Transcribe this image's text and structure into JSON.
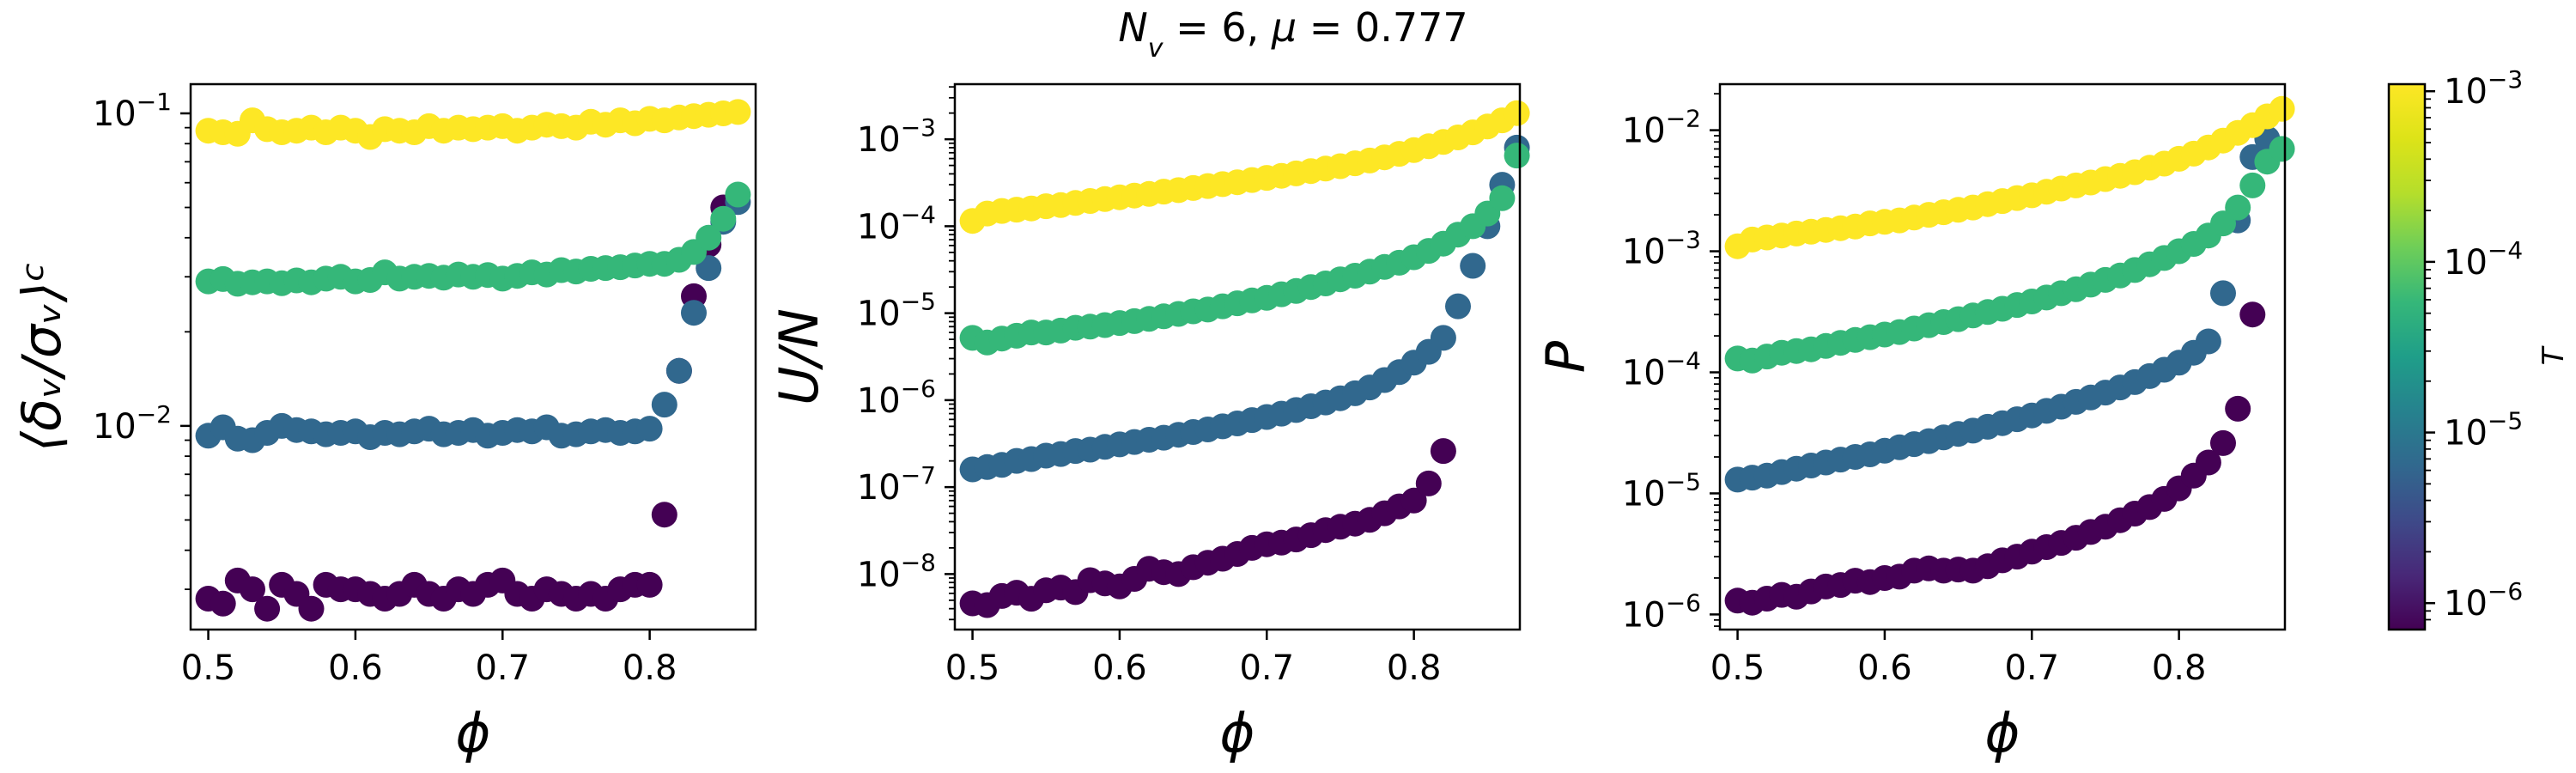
{
  "figure": {
    "suptitle": "N_v = 6, μ = 0.777",
    "suptitle_parts": {
      "sym": "N",
      "sub": "v",
      "rest": " = 6, ",
      "mu": "μ",
      "value": " = 0.777"
    }
  },
  "colors": {
    "T_1e-06": "#440154",
    "T_1e-05": "#31688e",
    "T_1e-04": "#35b779",
    "T_1e-03": "#fde725"
  },
  "colorbar": {
    "label": "T",
    "scale": "log",
    "range": [
      7e-07,
      0.0011
    ],
    "ticks": [
      {
        "base": "10",
        "exp": "−3",
        "value": 0.001
      },
      {
        "base": "10",
        "exp": "−4",
        "value": 0.0001
      },
      {
        "base": "10",
        "exp": "−5",
        "value": 1e-05
      },
      {
        "base": "10",
        "exp": "−6",
        "value": 1e-06
      }
    ]
  },
  "chart_data": [
    {
      "type": "scatter",
      "xlabel": "ϕ",
      "ylabel": "⟨δ_v/σ_v⟩_c",
      "ylabel_display": "⟨δᵥ/σᵥ⟩ᶜ",
      "yscale": "log",
      "xlim": [
        0.488,
        0.872
      ],
      "ylim": [
        0.00223,
        0.124
      ],
      "xticks": [
        "0.5",
        "0.6",
        "0.7",
        "0.8"
      ],
      "yticks": [
        {
          "base": "10",
          "exp": "−1",
          "value": 0.1
        },
        {
          "base": "10",
          "exp": "−2",
          "value": 0.01
        }
      ],
      "series": [
        {
          "color_key": "T_1e-06",
          "x_start": 0.5,
          "x_step": 0.01,
          "values": [
            0.0028,
            0.0027,
            0.0032,
            0.003,
            0.0026,
            0.0031,
            0.0029,
            0.0026,
            0.0031,
            0.003,
            0.003,
            0.0029,
            0.0028,
            0.0029,
            0.0031,
            0.0029,
            0.0028,
            0.003,
            0.0029,
            0.0031,
            0.0032,
            0.0029,
            0.0028,
            0.003,
            0.0029,
            0.0028,
            0.0029,
            0.0028,
            0.003,
            0.0031,
            0.0031,
            0.0052,
            0.015,
            0.026,
            0.038,
            0.05
          ]
        },
        {
          "color_key": "T_1e-05",
          "x_start": 0.5,
          "x_step": 0.01,
          "values": [
            0.0093,
            0.0099,
            0.0091,
            0.009,
            0.0095,
            0.01,
            0.0097,
            0.0096,
            0.0094,
            0.0095,
            0.0096,
            0.0092,
            0.0095,
            0.0094,
            0.0096,
            0.0098,
            0.0094,
            0.0095,
            0.0097,
            0.0093,
            0.0095,
            0.0097,
            0.0096,
            0.0099,
            0.0093,
            0.0094,
            0.0096,
            0.0097,
            0.0095,
            0.0096,
            0.0098,
            0.0117,
            0.015,
            0.023,
            0.032,
            0.045,
            0.052
          ]
        },
        {
          "color_key": "T_1e-04",
          "x_start": 0.5,
          "x_step": 0.01,
          "values": [
            0.029,
            0.0295,
            0.0285,
            0.0288,
            0.029,
            0.0286,
            0.0292,
            0.0288,
            0.0296,
            0.03,
            0.029,
            0.0293,
            0.031,
            0.0296,
            0.03,
            0.0302,
            0.0298,
            0.0305,
            0.03,
            0.0304,
            0.0296,
            0.0302,
            0.031,
            0.0305,
            0.0315,
            0.0312,
            0.0318,
            0.032,
            0.0322,
            0.0326,
            0.033,
            0.033,
            0.034,
            0.036,
            0.04,
            0.046,
            0.055
          ]
        },
        {
          "color_key": "T_1e-03",
          "x_start": 0.5,
          "x_step": 0.01,
          "values": [
            0.088,
            0.087,
            0.086,
            0.095,
            0.089,
            0.087,
            0.088,
            0.09,
            0.087,
            0.09,
            0.088,
            0.084,
            0.089,
            0.088,
            0.087,
            0.091,
            0.088,
            0.09,
            0.089,
            0.09,
            0.091,
            0.088,
            0.09,
            0.092,
            0.091,
            0.09,
            0.094,
            0.092,
            0.095,
            0.093,
            0.096,
            0.095,
            0.097,
            0.098,
            0.099,
            0.1,
            0.101
          ]
        }
      ]
    },
    {
      "type": "scatter",
      "xlabel": "ϕ",
      "ylabel": "U/N",
      "ylabel_display": "U/N",
      "yscale": "log",
      "xlim": [
        0.488,
        0.872
      ],
      "ylim": [
        2.3e-09,
        0.0043
      ],
      "xticks": [
        "0.5",
        "0.6",
        "0.7",
        "0.8"
      ],
      "yticks": [
        {
          "base": "10",
          "exp": "−3",
          "value": 0.001
        },
        {
          "base": "10",
          "exp": "−4",
          "value": 0.0001
        },
        {
          "base": "10",
          "exp": "−5",
          "value": 1e-05
        },
        {
          "base": "10",
          "exp": "−6",
          "value": 1e-06
        },
        {
          "base": "10",
          "exp": "−7",
          "value": 1e-07
        },
        {
          "base": "10",
          "exp": "−8",
          "value": 1e-08
        }
      ],
      "series": [
        {
          "color_key": "T_1e-06",
          "x_start": 0.5,
          "x_step": 0.01,
          "values": [
            4.6e-09,
            4.4e-09,
            5.6e-09,
            6.1e-09,
            5.2e-09,
            6.5e-09,
            7e-09,
            6.2e-09,
            8.5e-09,
            7.8e-09,
            7.2e-09,
            8.8e-09,
            1.15e-08,
            1.05e-08,
            1e-08,
            1.2e-08,
            1.35e-08,
            1.5e-08,
            1.7e-08,
            2e-08,
            2.2e-08,
            2.3e-08,
            2.5e-08,
            2.8e-08,
            3.2e-08,
            3.5e-08,
            3.8e-08,
            4.2e-08,
            5e-08,
            6e-08,
            7e-08,
            1.1e-07,
            2.6e-07
          ]
        },
        {
          "color_key": "T_1e-05",
          "x_start": 0.5,
          "x_step": 0.01,
          "values": [
            1.6e-07,
            1.7e-07,
            1.8e-07,
            2e-07,
            2.1e-07,
            2.3e-07,
            2.4e-07,
            2.6e-07,
            2.7e-07,
            2.9e-07,
            3.1e-07,
            3.3e-07,
            3.5e-07,
            3.7e-07,
            4e-07,
            4.3e-07,
            4.6e-07,
            5e-07,
            5.4e-07,
            5.9e-07,
            6.4e-07,
            7e-07,
            7.7e-07,
            8.5e-07,
            9.4e-07,
            1.05e-06,
            1.2e-06,
            1.4e-06,
            1.7e-06,
            2.1e-06,
            2.7e-06,
            3.6e-06,
            5.2e-06,
            1.2e-05,
            3.5e-05,
            0.0001,
            0.0003,
            0.0008
          ]
        },
        {
          "color_key": "T_1e-04",
          "x_start": 0.5,
          "x_step": 0.01,
          "values": [
            5.2e-06,
            4.6e-06,
            5.1e-06,
            5.5e-06,
            6e-06,
            6e-06,
            6.3e-06,
            6.8e-06,
            7e-06,
            7.3e-06,
            7.7e-06,
            8.1e-06,
            8.6e-06,
            9.2e-06,
            9.8e-06,
            1.05e-05,
            1.1e-05,
            1.2e-05,
            1.3e-05,
            1.4e-05,
            1.5e-05,
            1.65e-05,
            1.8e-05,
            2e-05,
            2.2e-05,
            2.45e-05,
            2.7e-05,
            3e-05,
            3.4e-05,
            3.8e-05,
            4.4e-05,
            5.2e-05,
            6.3e-05,
            8e-05,
            0.0001,
            0.00014,
            0.00021,
            0.00065
          ]
        },
        {
          "color_key": "T_1e-03",
          "x_start": 0.5,
          "x_step": 0.01,
          "values": [
            0.000115,
            0.00014,
            0.00015,
            0.000155,
            0.00016,
            0.00017,
            0.000175,
            0.000185,
            0.000195,
            0.000205,
            0.000215,
            0.000225,
            0.000235,
            0.00025,
            0.00026,
            0.000275,
            0.00029,
            0.000305,
            0.00032,
            0.00034,
            0.00036,
            0.00038,
            0.000405,
            0.00043,
            0.00046,
            0.00049,
            0.00053,
            0.00057,
            0.00062,
            0.00068,
            0.00075,
            0.00083,
            0.00093,
            0.00105,
            0.0012,
            0.0014,
            0.00165,
            0.002
          ]
        }
      ]
    },
    {
      "type": "scatter",
      "xlabel": "ϕ",
      "ylabel": "P",
      "ylabel_display": "P",
      "yscale": "log",
      "xlim": [
        0.488,
        0.872
      ],
      "ylim": [
        7.5e-07,
        0.024
      ],
      "xticks": [
        "0.5",
        "0.6",
        "0.7",
        "0.8"
      ],
      "yticks": [
        {
          "base": "10",
          "exp": "−2",
          "value": 0.01
        },
        {
          "base": "10",
          "exp": "−3",
          "value": 0.001
        },
        {
          "base": "10",
          "exp": "−4",
          "value": 0.0001
        },
        {
          "base": "10",
          "exp": "−5",
          "value": 1e-05
        },
        {
          "base": "10",
          "exp": "−6",
          "value": 1e-06
        }
      ],
      "series": [
        {
          "color_key": "T_1e-06",
          "x_start": 0.5,
          "x_step": 0.01,
          "values": [
            1.3e-06,
            1.25e-06,
            1.35e-06,
            1.45e-06,
            1.4e-06,
            1.55e-06,
            1.7e-06,
            1.75e-06,
            1.9e-06,
            1.85e-06,
            2e-06,
            2.05e-06,
            2.3e-06,
            2.4e-06,
            2.3e-06,
            2.35e-06,
            2.3e-06,
            2.5e-06,
            2.8e-06,
            3e-06,
            3.3e-06,
            3.6e-06,
            3.9e-06,
            4.3e-06,
            4.8e-06,
            5.3e-06,
            6e-06,
            6.8e-06,
            7.7e-06,
            9e-06,
            1.1e-05,
            1.4e-05,
            1.8e-05,
            2.6e-05,
            5e-05,
            0.0003
          ]
        },
        {
          "color_key": "T_1e-05",
          "x_start": 0.5,
          "x_step": 0.01,
          "values": [
            1.3e-05,
            1.35e-05,
            1.4e-05,
            1.5e-05,
            1.6e-05,
            1.7e-05,
            1.8e-05,
            1.9e-05,
            2e-05,
            2.1e-05,
            2.25e-05,
            2.4e-05,
            2.55e-05,
            2.7e-05,
            2.9e-05,
            3.1e-05,
            3.3e-05,
            3.55e-05,
            3.8e-05,
            4.1e-05,
            4.4e-05,
            4.8e-05,
            5.2e-05,
            5.7e-05,
            6.2e-05,
            6.8e-05,
            7.5e-05,
            8.3e-05,
            9.3e-05,
            0.000105,
            0.00012,
            0.000145,
            0.00018,
            0.00045,
            0.0018,
            0.006,
            0.0085
          ]
        },
        {
          "color_key": "T_1e-04",
          "x_start": 0.5,
          "x_step": 0.01,
          "values": [
            0.00013,
            0.000125,
            0.000135,
            0.000145,
            0.00015,
            0.000155,
            0.000165,
            0.000175,
            0.000185,
            0.000195,
            0.000205,
            0.000215,
            0.00023,
            0.000245,
            0.00026,
            0.000275,
            0.000295,
            0.000315,
            0.000335,
            0.00036,
            0.000385,
            0.000415,
            0.00045,
            0.000485,
            0.00053,
            0.00058,
            0.00063,
            0.0007,
            0.00078,
            0.00088,
            0.001,
            0.00115,
            0.00135,
            0.0017,
            0.0023,
            0.0035,
            0.0055,
            0.007
          ]
        },
        {
          "color_key": "T_1e-03",
          "x_start": 0.5,
          "x_step": 0.01,
          "values": [
            0.0011,
            0.00125,
            0.0013,
            0.00135,
            0.0014,
            0.00145,
            0.0015,
            0.00155,
            0.0016,
            0.0017,
            0.00175,
            0.0018,
            0.0019,
            0.002,
            0.0021,
            0.0022,
            0.0023,
            0.00245,
            0.0026,
            0.00275,
            0.0029,
            0.0031,
            0.0033,
            0.0035,
            0.0037,
            0.00395,
            0.0042,
            0.0045,
            0.0049,
            0.0053,
            0.0058,
            0.0064,
            0.0072,
            0.0082,
            0.0095,
            0.011,
            0.013,
            0.015
          ]
        }
      ]
    }
  ]
}
